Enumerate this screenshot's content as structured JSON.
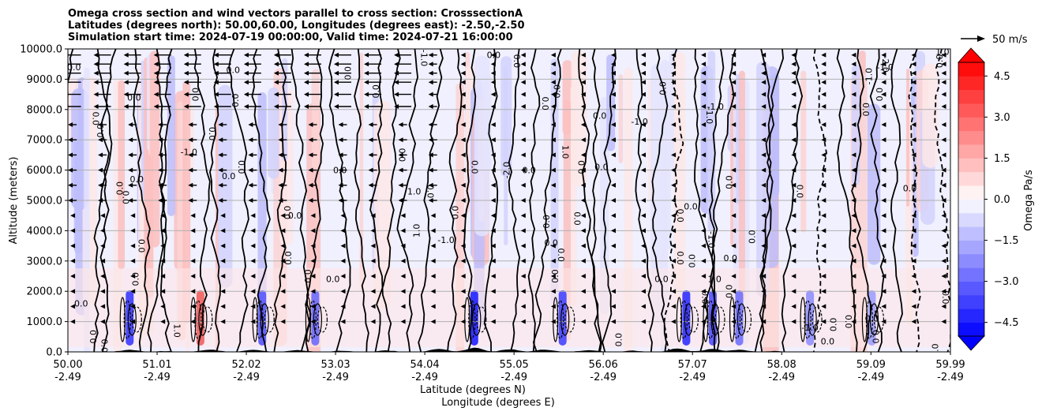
{
  "chart_data": {
    "type": "heatmap",
    "title_lines": [
      "Omega cross section and wind vectors parallel to cross section: CrosssectionA",
      "Latitudes (degrees north): 50.00,60.00, Longitudes (degrees east): -2.50,-2.50",
      "Simulation start time: 2024-07-19 00:00:00, Valid time: 2024-07-21 16:00:00"
    ],
    "xlabel_lines": [
      "Latitude (degrees N)",
      "Longitude (degrees E)"
    ],
    "ylabel": "Altitude (meters)",
    "x_ticks": [
      {
        "lat": "50.00",
        "lon": "-2.49"
      },
      {
        "lat": "51.01",
        "lon": "-2.49"
      },
      {
        "lat": "52.02",
        "lon": "-2.49"
      },
      {
        "lat": "53.03",
        "lon": "-2.49"
      },
      {
        "lat": "54.04",
        "lon": "-2.49"
      },
      {
        "lat": "55.05",
        "lon": "-2.49"
      },
      {
        "lat": "56.06",
        "lon": "-2.49"
      },
      {
        "lat": "57.07",
        "lon": "-2.49"
      },
      {
        "lat": "58.08",
        "lon": "-2.49"
      },
      {
        "lat": "59.09",
        "lon": "-2.49"
      },
      {
        "lat": "59.99",
        "lon": "-2.49"
      }
    ],
    "xlim": [
      50.0,
      59.99
    ],
    "y_ticks": [
      "0.0",
      "1000.0",
      "2000.0",
      "3000.0",
      "4000.0",
      "5000.0",
      "6000.0",
      "7000.0",
      "8000.0",
      "9000.0",
      "10000.0"
    ],
    "ylim": [
      0,
      10000
    ],
    "grid": "horizontal",
    "colorbar": {
      "label": "Omega Pa/s",
      "ticks": [
        "4.5",
        "3.0",
        "1.5",
        "0.0",
        "−1.5",
        "−3.0",
        "−4.5"
      ],
      "range": [
        -5.0,
        5.0
      ],
      "extend": "both",
      "colormap": "bwr",
      "low_color": "#0000ff",
      "mid_color": "#ffffff",
      "high_color": "#ff0000"
    },
    "quiver_key": {
      "label": "50 m/s"
    },
    "contour_labels": [
      {
        "text": "0.0",
        "lat": 50.07,
        "alt": 9300
      },
      {
        "text": "0.0",
        "lat": 50.28,
        "alt": 7700
      },
      {
        "text": "0.0",
        "lat": 50.4,
        "alt": 7300
      },
      {
        "text": "0.0",
        "lat": 50.75,
        "alt": 8300
      },
      {
        "text": "0.0",
        "lat": 50.62,
        "alt": 5400
      },
      {
        "text": "0.0",
        "lat": 50.62,
        "alt": 5100
      },
      {
        "text": "0.0",
        "lat": 50.78,
        "alt": 5600
      },
      {
        "text": "0.0",
        "lat": 50.8,
        "alt": 3500
      },
      {
        "text": "0.0",
        "lat": 50.8,
        "alt": 2400
      },
      {
        "text": "0.0",
        "lat": 50.15,
        "alt": 1500
      },
      {
        "text": "0.0",
        "lat": 50.32,
        "alt": 500
      },
      {
        "text": "0.0",
        "lat": 50.38,
        "alt": 200
      },
      {
        "text": "-1.0",
        "lat": 51.37,
        "alt": 6500
      },
      {
        "text": "1.0",
        "lat": 51.2,
        "alt": 700
      },
      {
        "text": "0.0",
        "lat": 51.48,
        "alt": 8500
      },
      {
        "text": "0.0",
        "lat": 51.87,
        "alt": 9200
      },
      {
        "text": "0.0",
        "lat": 51.93,
        "alt": 8300
      },
      {
        "text": "0.0",
        "lat": 51.6,
        "alt": 7200
      },
      {
        "text": "0.0",
        "lat": 51.82,
        "alt": 5700
      },
      {
        "text": "0.0",
        "lat": 51.93,
        "alt": 6100
      },
      {
        "text": "0.0",
        "lat": 52.52,
        "alt": 4600
      },
      {
        "text": "0.0",
        "lat": 52.57,
        "alt": 4400
      },
      {
        "text": "0.0",
        "lat": 52.53,
        "alt": 3100
      },
      {
        "text": "0.0",
        "lat": 52.68,
        "alt": 2500
      },
      {
        "text": "0.0",
        "lat": 53.0,
        "alt": 2300
      },
      {
        "text": "0.0",
        "lat": 53.13,
        "alt": 9200
      },
      {
        "text": "0.0",
        "lat": 53.52,
        "alt": 8600
      },
      {
        "text": "0.0",
        "lat": 53.08,
        "alt": 5900
      },
      {
        "text": "0.0",
        "lat": 53.82,
        "alt": 6500
      },
      {
        "text": "-1.0",
        "lat": 54.0,
        "alt": 9700
      },
      {
        "text": "1.0",
        "lat": 53.92,
        "alt": 5200
      },
      {
        "text": "0.0",
        "lat": 54.07,
        "alt": 5300
      },
      {
        "text": "1.0",
        "lat": 53.98,
        "alt": 4000
      },
      {
        "text": "-1.0",
        "lat": 54.28,
        "alt": 3600
      },
      {
        "text": "0.0",
        "lat": 54.42,
        "alt": 4600
      },
      {
        "text": "0.0",
        "lat": 54.57,
        "alt": 6100
      },
      {
        "text": "0.0",
        "lat": 54.82,
        "alt": 9700
      },
      {
        "text": "0.0",
        "lat": 55.05,
        "alt": 9600
      },
      {
        "text": "-2.0",
        "lat": 55.0,
        "alt": 6000
      },
      {
        "text": "0.0",
        "lat": 55.22,
        "alt": 5900
      },
      {
        "text": "0.0",
        "lat": 55.57,
        "alt": 8600
      },
      {
        "text": "0.0",
        "lat": 55.37,
        "alt": 8200
      },
      {
        "text": "0.0",
        "lat": 56.02,
        "alt": 7700
      },
      {
        "text": "1.0",
        "lat": 55.6,
        "alt": 6600
      },
      {
        "text": "0.0",
        "lat": 55.85,
        "alt": 6100
      },
      {
        "text": "0.0",
        "lat": 56.04,
        "alt": 6000
      },
      {
        "text": "0.0",
        "lat": 55.45,
        "alt": 4300
      },
      {
        "text": "0.0",
        "lat": 55.73,
        "alt": 4400
      },
      {
        "text": "0.0",
        "lat": 55.47,
        "alt": 3500
      },
      {
        "text": "0.0",
        "lat": 55.55,
        "alt": 3200
      },
      {
        "text": "0.0",
        "lat": 55.55,
        "alt": 2500
      },
      {
        "text": "-1.0",
        "lat": 56.47,
        "alt": 7500
      },
      {
        "text": "0.0",
        "lat": 56.77,
        "alt": 8700
      },
      {
        "text": "0.0",
        "lat": 56.9,
        "alt": 4500
      },
      {
        "text": "0.0",
        "lat": 57.05,
        "alt": 4700
      },
      {
        "text": "0.0",
        "lat": 56.9,
        "alt": 3100
      },
      {
        "text": "0.0",
        "lat": 57.1,
        "alt": 3000
      },
      {
        "text": "0.0",
        "lat": 56.72,
        "alt": 2300
      },
      {
        "text": "0.0",
        "lat": 56.27,
        "alt": 400
      },
      {
        "text": "-1.0",
        "lat": 57.23,
        "alt": 7800
      },
      {
        "text": "-1.0",
        "lat": 57.33,
        "alt": 8000
      },
      {
        "text": "-1.0",
        "lat": 57.25,
        "alt": 3700
      },
      {
        "text": "0.0",
        "lat": 57.52,
        "alt": 5600
      },
      {
        "text": "0.0",
        "lat": 57.5,
        "alt": 3000
      },
      {
        "text": "0.0",
        "lat": 57.78,
        "alt": 3800
      },
      {
        "text": "0.0",
        "lat": 58.25,
        "alt": 5300
      },
      {
        "text": "1.0",
        "lat": 57.32,
        "alt": 2300
      },
      {
        "text": "0.0",
        "lat": 57.18,
        "alt": 1800
      },
      {
        "text": "0.0",
        "lat": 57.52,
        "alt": 2000
      },
      {
        "text": "-1.0",
        "lat": 58.4,
        "alt": 700
      },
      {
        "text": "0.0",
        "lat": 58.7,
        "alt": 900
      },
      {
        "text": "0.0",
        "lat": 58.8,
        "alt": 1000
      },
      {
        "text": "0.0",
        "lat": 58.6,
        "alt": 250
      },
      {
        "text": "0.0",
        "lat": 59.0,
        "alt": 8000
      },
      {
        "text": "0.0",
        "lat": 59.22,
        "alt": 8500
      },
      {
        "text": "0.0",
        "lat": 59.53,
        "alt": 5300
      },
      {
        "text": "0.0",
        "lat": 59.9,
        "alt": 9600
      },
      {
        "text": "0.0",
        "lat": 59.9,
        "alt": 1800
      },
      {
        "text": "0.0",
        "lat": 59.1,
        "alt": 1000
      },
      {
        "text": "0.0",
        "lat": 59.11,
        "alt": 500
      },
      {
        "text": "0.0",
        "lat": 59.85,
        "alt": 50
      },
      {
        "text": "-1.0",
        "lat": 59.25,
        "alt": 9300
      },
      {
        "text": "-1.0",
        "lat": 59.1,
        "alt": 9100
      },
      {
        "text": "-2.0",
        "lat": 59.22,
        "alt": 9500
      },
      {
        "text": "1.0",
        "lat": 59.9,
        "alt": 9800
      }
    ]
  }
}
